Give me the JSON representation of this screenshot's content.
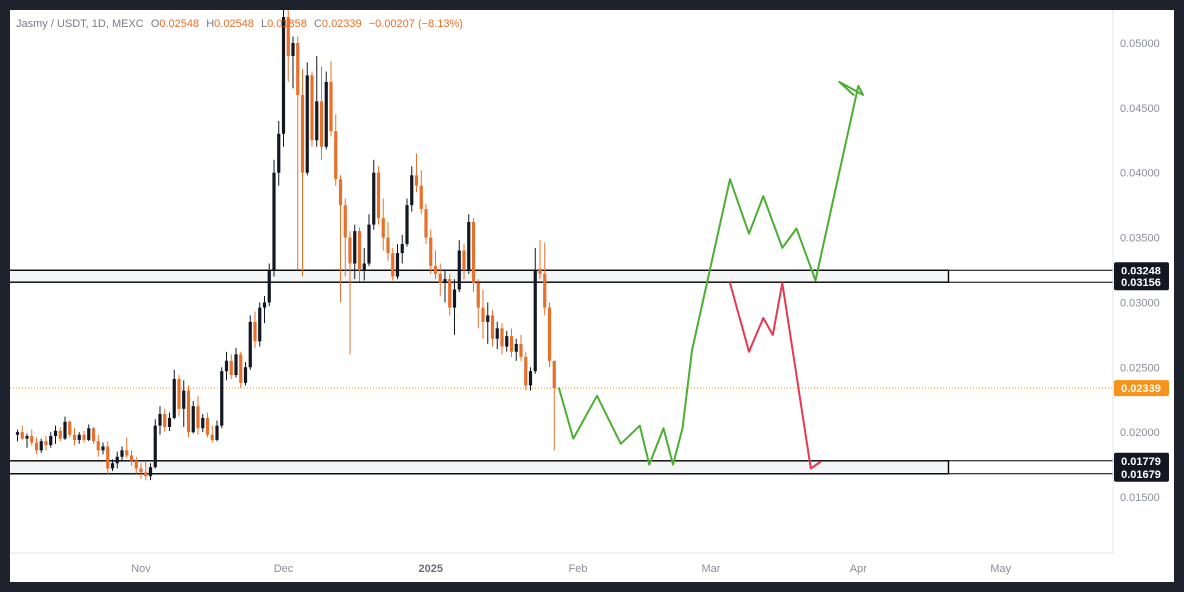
{
  "legend": {
    "symbol": "Jasmy / USDT, 1D, MEXC",
    "o_label": "O",
    "o": "0.02548",
    "h_label": "H",
    "h": "0.02548",
    "l_label": "L",
    "l": "0.01858",
    "c_label": "C",
    "c": "0.02339",
    "change": "−0.00207 (−8.13%)"
  },
  "colors": {
    "up": "#131722",
    "down": "#e8702a",
    "bull_path": "#4caf32",
    "bear_path": "#e53950",
    "zone_border": "#000000",
    "zone_fill": "#f4f5f7",
    "last_price": "#f7931a"
  },
  "chart_data": {
    "type": "candlestick",
    "title": "",
    "ylim": [
      0.0135,
      0.0525
    ],
    "y_ticks": [
      "0.01500",
      "0.02000",
      "0.02500",
      "0.03000",
      "0.03500",
      "0.04000",
      "0.04500",
      "0.05000"
    ],
    "x_labels": [
      {
        "label": "Nov",
        "day": 0,
        "bold": false
      },
      {
        "label": "Dec",
        "day": 30,
        "bold": false
      },
      {
        "label": "2025",
        "day": 61,
        "bold": true
      },
      {
        "label": "Feb",
        "day": 92,
        "bold": false
      },
      {
        "label": "Mar",
        "day": 120,
        "bold": false
      },
      {
        "label": "Apr",
        "day": 151,
        "bold": false
      },
      {
        "label": "May",
        "day": 181,
        "bold": false
      }
    ],
    "last_price": 0.02339,
    "price_tags": [
      {
        "label": "0.03248",
        "value": 0.03248,
        "style": "dark"
      },
      {
        "label": "0.03156",
        "value": 0.03156,
        "style": "dark"
      },
      {
        "label": "0.02339",
        "value": 0.02339,
        "style": "last"
      },
      {
        "label": "0.01779",
        "value": 0.01779,
        "style": "dark"
      },
      {
        "label": "0.01679",
        "value": 0.01679,
        "style": "dark"
      }
    ],
    "zones": [
      {
        "top": 0.03248,
        "bottom": 0.03156,
        "day_start": 2,
        "day_end": 170
      },
      {
        "top": 0.01779,
        "bottom": 0.01679,
        "day_start": -26,
        "day_end": 170
      }
    ],
    "candles": [
      [
        -26,
        0.0198,
        0.0202,
        0.0193,
        0.02
      ],
      [
        -25,
        0.02,
        0.0205,
        0.0194,
        0.0195
      ],
      [
        -24,
        0.0195,
        0.0199,
        0.0188,
        0.0197
      ],
      [
        -23,
        0.0197,
        0.0202,
        0.019,
        0.0192
      ],
      [
        -22,
        0.0192,
        0.0196,
        0.0183,
        0.0186
      ],
      [
        -21,
        0.0186,
        0.0195,
        0.0184,
        0.0193
      ],
      [
        -20,
        0.0193,
        0.0197,
        0.0186,
        0.019
      ],
      [
        -19,
        0.019,
        0.02,
        0.0188,
        0.0197
      ],
      [
        -18,
        0.0197,
        0.0205,
        0.0191,
        0.0201
      ],
      [
        -17,
        0.0201,
        0.0204,
        0.0193,
        0.0195
      ],
      [
        -16,
        0.0195,
        0.0212,
        0.0194,
        0.0208
      ],
      [
        -15,
        0.0208,
        0.0209,
        0.0196,
        0.0198
      ],
      [
        -14,
        0.0198,
        0.0203,
        0.019,
        0.0194
      ],
      [
        -13,
        0.0194,
        0.02,
        0.0191,
        0.0198
      ],
      [
        -12,
        0.0198,
        0.0201,
        0.0192,
        0.0194
      ],
      [
        -11,
        0.0194,
        0.0206,
        0.0193,
        0.0203
      ],
      [
        -10,
        0.0203,
        0.0204,
        0.0191,
        0.0193
      ],
      [
        -9,
        0.0193,
        0.0198,
        0.0181,
        0.0186
      ],
      [
        -8,
        0.0186,
        0.0192,
        0.0183,
        0.0189
      ],
      [
        -7,
        0.0189,
        0.0193,
        0.0168,
        0.0172
      ],
      [
        -6,
        0.0172,
        0.0179,
        0.017,
        0.0176
      ],
      [
        -5,
        0.0176,
        0.0185,
        0.0172,
        0.0181
      ],
      [
        -4,
        0.0181,
        0.0189,
        0.0178,
        0.0186
      ],
      [
        -3,
        0.0186,
        0.0196,
        0.018,
        0.0182
      ],
      [
        -2,
        0.0182,
        0.0186,
        0.0174,
        0.0178
      ],
      [
        -1,
        0.0178,
        0.0181,
        0.0168,
        0.0172
      ],
      [
        0,
        0.0172,
        0.0176,
        0.0164,
        0.0169
      ],
      [
        1,
        0.0169,
        0.0177,
        0.0163,
        0.0166
      ],
      [
        2,
        0.0166,
        0.0176,
        0.0163,
        0.0173
      ],
      [
        3,
        0.0173,
        0.021,
        0.0172,
        0.0205
      ],
      [
        4,
        0.0205,
        0.022,
        0.0198,
        0.0214
      ],
      [
        5,
        0.0214,
        0.0218,
        0.02,
        0.0204
      ],
      [
        6,
        0.0204,
        0.0215,
        0.0201,
        0.0211
      ],
      [
        7,
        0.0211,
        0.0248,
        0.021,
        0.0241
      ],
      [
        8,
        0.0241,
        0.0244,
        0.0212,
        0.0218
      ],
      [
        9,
        0.0218,
        0.024,
        0.0204,
        0.0232
      ],
      [
        10,
        0.0232,
        0.0236,
        0.0196,
        0.02
      ],
      [
        11,
        0.02,
        0.0224,
        0.0199,
        0.022
      ],
      [
        12,
        0.022,
        0.0228,
        0.0198,
        0.0203
      ],
      [
        13,
        0.0203,
        0.0214,
        0.02,
        0.0211
      ],
      [
        14,
        0.0211,
        0.0215,
        0.0196,
        0.0198
      ],
      [
        15,
        0.0198,
        0.0205,
        0.0192,
        0.0194
      ],
      [
        16,
        0.0194,
        0.0209,
        0.0193,
        0.0205
      ],
      [
        17,
        0.0205,
        0.025,
        0.0203,
        0.0247
      ],
      [
        18,
        0.0247,
        0.0262,
        0.024,
        0.0255
      ],
      [
        19,
        0.0255,
        0.026,
        0.0241,
        0.0244
      ],
      [
        20,
        0.0244,
        0.0265,
        0.0242,
        0.026
      ],
      [
        21,
        0.026,
        0.0262,
        0.0234,
        0.0238
      ],
      [
        22,
        0.0238,
        0.0254,
        0.0236,
        0.025
      ],
      [
        23,
        0.025,
        0.029,
        0.0248,
        0.0285
      ],
      [
        24,
        0.0285,
        0.0293,
        0.0265,
        0.027
      ],
      [
        25,
        0.027,
        0.03,
        0.0266,
        0.0296
      ],
      [
        26,
        0.0296,
        0.0305,
        0.0284,
        0.03
      ],
      [
        27,
        0.03,
        0.033,
        0.0297,
        0.0325
      ],
      [
        28,
        0.0325,
        0.041,
        0.032,
        0.04
      ],
      [
        29,
        0.04,
        0.044,
        0.039,
        0.043
      ],
      [
        30,
        0.043,
        0.0535,
        0.042,
        0.052
      ],
      [
        31,
        0.052,
        0.053,
        0.047,
        0.049
      ],
      [
        32,
        0.049,
        0.0505,
        0.0465,
        0.05
      ],
      [
        33,
        0.05,
        0.0505,
        0.0325,
        0.046
      ],
      [
        34,
        0.046,
        0.048,
        0.032,
        0.04
      ],
      [
        35,
        0.04,
        0.0485,
        0.0398,
        0.0475
      ],
      [
        36,
        0.0475,
        0.0478,
        0.042,
        0.0425
      ],
      [
        37,
        0.0425,
        0.049,
        0.042,
        0.0455
      ],
      [
        38,
        0.0455,
        0.0482,
        0.041,
        0.042
      ],
      [
        39,
        0.042,
        0.0478,
        0.0418,
        0.047
      ],
      [
        40,
        0.047,
        0.0486,
        0.0428,
        0.0432
      ],
      [
        41,
        0.0432,
        0.0445,
        0.039,
        0.0395
      ],
      [
        42,
        0.0395,
        0.0398,
        0.03,
        0.0375
      ],
      [
        43,
        0.0375,
        0.038,
        0.032,
        0.035
      ],
      [
        44,
        0.035,
        0.0355,
        0.026,
        0.033
      ],
      [
        45,
        0.033,
        0.036,
        0.0318,
        0.0355
      ],
      [
        46,
        0.0355,
        0.0358,
        0.0316,
        0.0325
      ],
      [
        47,
        0.0325,
        0.0342,
        0.0317,
        0.033
      ],
      [
        48,
        0.033,
        0.0368,
        0.0328,
        0.036
      ],
      [
        49,
        0.036,
        0.041,
        0.0356,
        0.04
      ],
      [
        50,
        0.04,
        0.0405,
        0.036,
        0.0365
      ],
      [
        51,
        0.0365,
        0.038,
        0.034,
        0.035
      ],
      [
        52,
        0.035,
        0.0362,
        0.0332,
        0.0338
      ],
      [
        53,
        0.0338,
        0.0342,
        0.0317,
        0.032
      ],
      [
        54,
        0.032,
        0.0345,
        0.0318,
        0.0338
      ],
      [
        55,
        0.0338,
        0.0352,
        0.033,
        0.0345
      ],
      [
        56,
        0.0345,
        0.038,
        0.0343,
        0.0375
      ],
      [
        57,
        0.0375,
        0.0405,
        0.037,
        0.0398
      ],
      [
        58,
        0.0398,
        0.0415,
        0.0385,
        0.039
      ],
      [
        59,
        0.039,
        0.0402,
        0.0368,
        0.0372
      ],
      [
        60,
        0.0372,
        0.0376,
        0.0345,
        0.035
      ],
      [
        61,
        0.035,
        0.0356,
        0.0322,
        0.0328
      ],
      [
        62,
        0.0328,
        0.034,
        0.0318,
        0.0322
      ],
      [
        63,
        0.0322,
        0.033,
        0.0305,
        0.0315
      ],
      [
        64,
        0.0315,
        0.0325,
        0.03,
        0.0318
      ],
      [
        65,
        0.0318,
        0.0322,
        0.029,
        0.0296
      ],
      [
        66,
        0.0296,
        0.0318,
        0.0275,
        0.031
      ],
      [
        67,
        0.031,
        0.0348,
        0.0308,
        0.034
      ],
      [
        68,
        0.034,
        0.0345,
        0.0318,
        0.0325
      ],
      [
        69,
        0.0325,
        0.0368,
        0.0322,
        0.0362
      ],
      [
        70,
        0.0362,
        0.0365,
        0.0308,
        0.0315
      ],
      [
        71,
        0.0315,
        0.0318,
        0.028,
        0.0296
      ],
      [
        72,
        0.0296,
        0.031,
        0.0272,
        0.0285
      ],
      [
        73,
        0.0285,
        0.03,
        0.0268,
        0.029
      ],
      [
        74,
        0.029,
        0.0294,
        0.0266,
        0.0272
      ],
      [
        75,
        0.0272,
        0.0285,
        0.0264,
        0.028
      ],
      [
        76,
        0.028,
        0.0284,
        0.026,
        0.0266
      ],
      [
        77,
        0.0266,
        0.0278,
        0.0262,
        0.0274
      ],
      [
        78,
        0.0274,
        0.028,
        0.0258,
        0.0262
      ],
      [
        79,
        0.0262,
        0.0272,
        0.0255,
        0.0268
      ],
      [
        80,
        0.0268,
        0.0275,
        0.0255,
        0.0258
      ],
      [
        81,
        0.0258,
        0.0262,
        0.0232,
        0.0236
      ],
      [
        82,
        0.0236,
        0.025,
        0.0232,
        0.0247
      ],
      [
        83,
        0.0247,
        0.0342,
        0.0245,
        0.0325
      ],
      [
        84,
        0.0325,
        0.0348,
        0.0318,
        0.0322
      ],
      [
        85,
        0.0322,
        0.0346,
        0.029,
        0.0296
      ],
      [
        86,
        0.0296,
        0.03,
        0.025,
        0.0255
      ],
      [
        87,
        0.0255,
        0.0255,
        0.0186,
        0.0234
      ]
    ],
    "projections": [
      {
        "name": "",
        "color": "bull",
        "points": [
          [
            88,
            0.02339
          ],
          [
            91,
            0.0195
          ],
          [
            96,
            0.0228
          ],
          [
            101,
            0.0191
          ],
          [
            105,
            0.0205
          ],
          [
            107,
            0.0175
          ],
          [
            110,
            0.0203
          ],
          [
            112,
            0.0175
          ],
          [
            114,
            0.0203
          ],
          [
            116,
            0.0263
          ],
          [
            124,
            0.0395
          ],
          [
            128,
            0.0353
          ],
          [
            131,
            0.0382
          ],
          [
            135,
            0.0342
          ],
          [
            138,
            0.0357
          ],
          [
            142,
            0.0317
          ],
          [
            151,
            0.0467
          ],
          [
            152,
            0.046
          ],
          [
            147,
            0.047
          ],
          [
            150,
            0.046
          ]
        ]
      },
      {
        "name": "",
        "color": "bear",
        "points": [
          [
            124,
            0.0315
          ],
          [
            128,
            0.0262
          ],
          [
            131,
            0.0288
          ],
          [
            133,
            0.0275
          ],
          [
            135,
            0.0315
          ],
          [
            141,
            0.0172
          ],
          [
            143,
            0.0177
          ]
        ]
      }
    ]
  }
}
